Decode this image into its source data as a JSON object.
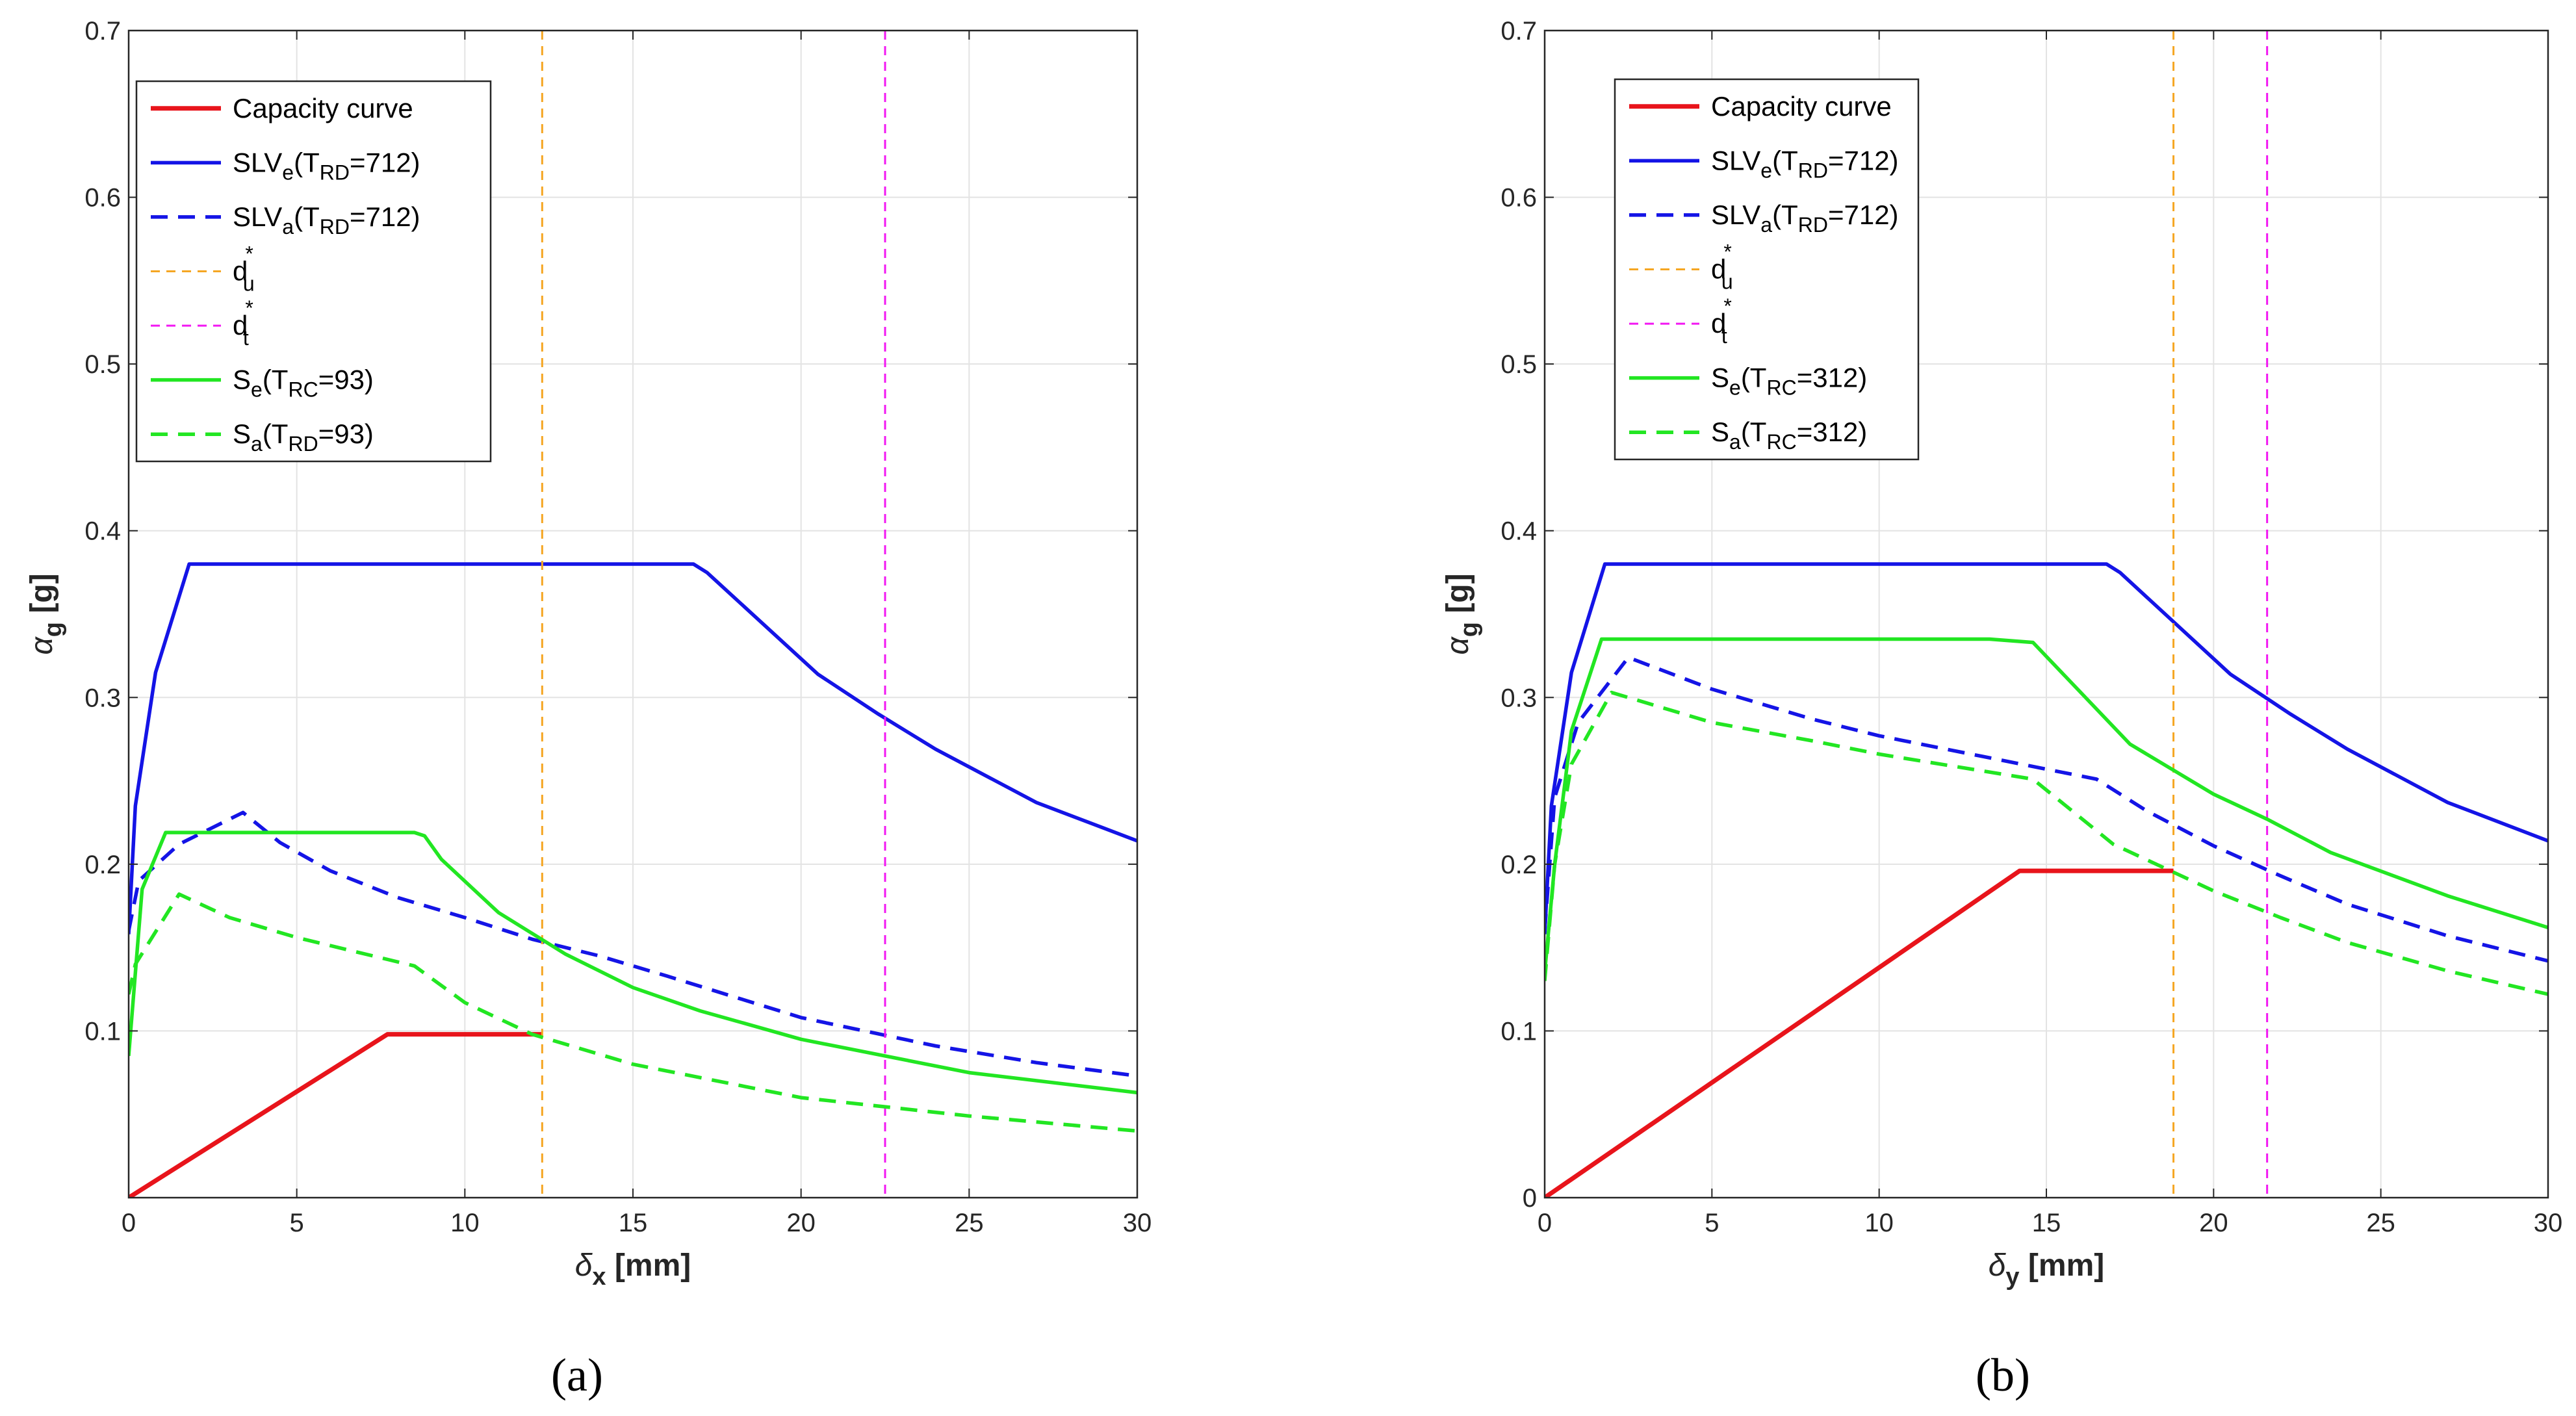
{
  "chart_data": [
    {
      "type": "line",
      "caption": "(a)",
      "xlabel": {
        "sym": "δ",
        "sub": "x",
        "unit": " [mm]"
      },
      "ylabel": {
        "sym": "α",
        "sub": "g",
        "unit": " [g]"
      },
      "xlim": [
        0,
        30
      ],
      "ylim": [
        0,
        0.7
      ],
      "grid": true,
      "legend_position": "top-left",
      "x_ticks": [
        {
          "v": 0,
          "label": "0"
        },
        {
          "v": 5,
          "label": "5"
        },
        {
          "v": 10,
          "label": "10"
        },
        {
          "v": 15,
          "label": "15"
        },
        {
          "v": 20,
          "label": "20"
        },
        {
          "v": 25,
          "label": "25"
        },
        {
          "v": 30,
          "label": "30"
        }
      ],
      "y_ticks": [
        {
          "v": 0.1,
          "label": "0.1"
        },
        {
          "v": 0.2,
          "label": "0.2"
        },
        {
          "v": 0.3,
          "label": "0.3"
        },
        {
          "v": 0.4,
          "label": "0.4"
        },
        {
          "v": 0.5,
          "label": "0.5"
        },
        {
          "v": 0.6,
          "label": "0.6"
        },
        {
          "v": 0.7,
          "label": "0.7"
        }
      ],
      "series": [
        {
          "name": "Capacity curve",
          "legend": {
            "main": "Capacity curve"
          },
          "color": "#e8141b",
          "style": "solid",
          "width": "thick",
          "x": [
            0,
            7.7,
            12.3
          ],
          "y": [
            0,
            0.098,
            0.098
          ]
        },
        {
          "name": "SLVe(TRD=712)",
          "legend": {
            "main": "SLV",
            "s1": "e",
            "mid": "(T",
            "s2": "RD",
            "end": "=712)"
          },
          "color": "#1414e6",
          "style": "solid",
          "width": "normal",
          "x": [
            0,
            0.2,
            0.8,
            1.8,
            16.8,
            17.2,
            20.5,
            22.3,
            24,
            27,
            30
          ],
          "y": [
            0.158,
            0.235,
            0.315,
            0.38,
            0.38,
            0.375,
            0.314,
            0.29,
            0.269,
            0.237,
            0.214
          ]
        },
        {
          "name": "SLVa(TRD=712)",
          "legend": {
            "main": "SLV",
            "s1": "a",
            "mid": "(T",
            "s2": "RD",
            "end": "=712)"
          },
          "color": "#1414e6",
          "style": "dashed",
          "width": "normal",
          "x": [
            0,
            0.3,
            1.5,
            3.4,
            4.5,
            6,
            8,
            10,
            12,
            14,
            16,
            20,
            24,
            27,
            30
          ],
          "y": [
            0.16,
            0.19,
            0.212,
            0.231,
            0.213,
            0.196,
            0.18,
            0.168,
            0.155,
            0.145,
            0.133,
            0.108,
            0.091,
            0.081,
            0.073
          ]
        },
        {
          "name": "du*",
          "legend": {
            "main": "d",
            "s1": "u",
            "sup": "*"
          },
          "color": "#f5a623",
          "style": "dashed",
          "width": "thin",
          "vline": 12.3
        },
        {
          "name": "dt*",
          "legend": {
            "main": "d",
            "s1": "t",
            "sup": "*"
          },
          "color": "#f218f2",
          "style": "dashed",
          "width": "thin",
          "vline": 22.5
        },
        {
          "name": "Se(TRC=93)",
          "legend": {
            "main": "S",
            "s1": "e",
            "mid": "(T",
            "s2": "RC",
            "end": "=93)"
          },
          "color": "#22e622",
          "style": "solid",
          "width": "normal",
          "x": [
            0,
            0.4,
            1.1,
            8.5,
            8.8,
            9.3,
            11,
            13,
            15,
            17,
            20,
            25,
            30
          ],
          "y": [
            0.085,
            0.185,
            0.219,
            0.219,
            0.217,
            0.203,
            0.171,
            0.146,
            0.126,
            0.112,
            0.095,
            0.075,
            0.063
          ]
        },
        {
          "name": "Sa(TRD=93)",
          "legend": {
            "main": "S",
            "s1": "a",
            "mid": "(T",
            "s2": "RD",
            "end": "=93)"
          },
          "color": "#22e622",
          "style": "dashed",
          "width": "normal",
          "x": [
            0,
            0.2,
            1.5,
            3,
            5,
            8.5,
            10,
            12,
            15,
            20,
            25,
            30
          ],
          "y": [
            0.122,
            0.14,
            0.182,
            0.168,
            0.156,
            0.139,
            0.117,
            0.098,
            0.08,
            0.06,
            0.049,
            0.04
          ]
        }
      ]
    },
    {
      "type": "line",
      "caption": "(b)",
      "xlabel": {
        "sym": "δ",
        "sub": "y",
        "unit": " [mm]"
      },
      "ylabel": {
        "sym": "α",
        "sub": "g",
        "unit": " [g]"
      },
      "xlim": [
        0,
        30
      ],
      "ylim": [
        0,
        0.7
      ],
      "grid": true,
      "legend_position": "top-left",
      "x_ticks": [
        {
          "v": 0,
          "label": "0"
        },
        {
          "v": 5,
          "label": "5"
        },
        {
          "v": 10,
          "label": "10"
        },
        {
          "v": 15,
          "label": "15"
        },
        {
          "v": 20,
          "label": "20"
        },
        {
          "v": 25,
          "label": "25"
        },
        {
          "v": 30,
          "label": "30"
        }
      ],
      "y_ticks": [
        {
          "v": 0,
          "label": "0"
        },
        {
          "v": 0.1,
          "label": "0.1"
        },
        {
          "v": 0.2,
          "label": "0.2"
        },
        {
          "v": 0.3,
          "label": "0.3"
        },
        {
          "v": 0.4,
          "label": "0.4"
        },
        {
          "v": 0.5,
          "label": "0.5"
        },
        {
          "v": 0.6,
          "label": "0.6"
        },
        {
          "v": 0.7,
          "label": "0.7"
        }
      ],
      "series": [
        {
          "name": "Capacity curve",
          "legend": {
            "main": "Capacity curve"
          },
          "color": "#e8141b",
          "style": "solid",
          "width": "thick",
          "x": [
            0,
            14.2,
            18.8
          ],
          "y": [
            0,
            0.196,
            0.196
          ]
        },
        {
          "name": "SLVe(TRD=712)",
          "legend": {
            "main": "SLV",
            "s1": "e",
            "mid": "(T",
            "s2": "RD",
            "end": "=712)"
          },
          "color": "#1414e6",
          "style": "solid",
          "width": "normal",
          "x": [
            0,
            0.2,
            0.8,
            1.8,
            16.8,
            17.2,
            20.5,
            22.3,
            24,
            27,
            30
          ],
          "y": [
            0.158,
            0.235,
            0.315,
            0.38,
            0.38,
            0.375,
            0.314,
            0.29,
            0.269,
            0.237,
            0.214
          ]
        },
        {
          "name": "SLVa(TRD=712)",
          "legend": {
            "main": "SLV",
            "s1": "a",
            "mid": "(T",
            "s2": "RD",
            "end": "=712)"
          },
          "color": "#1414e6",
          "style": "dashed",
          "width": "normal",
          "x": [
            0,
            0.3,
            1,
            2.5,
            5,
            8,
            10,
            13,
            16.5,
            18,
            20,
            22,
            24,
            27,
            30
          ],
          "y": [
            0.16,
            0.24,
            0.285,
            0.324,
            0.305,
            0.287,
            0.277,
            0.265,
            0.251,
            0.232,
            0.211,
            0.193,
            0.176,
            0.157,
            0.142
          ]
        },
        {
          "name": "du*",
          "legend": {
            "main": "d",
            "s1": "u",
            "sup": "*"
          },
          "color": "#f5a623",
          "style": "dashed",
          "width": "thin",
          "vline": 18.8
        },
        {
          "name": "dt*",
          "legend": {
            "main": "d",
            "s1": "t",
            "sup": "*"
          },
          "color": "#f218f2",
          "style": "dashed",
          "width": "thin",
          "vline": 21.6
        },
        {
          "name": "Se(TRC=312)",
          "legend": {
            "main": "S",
            "s1": "e",
            "mid": "(T",
            "s2": "RC",
            "end": "=312)"
          },
          "color": "#22e622",
          "style": "solid",
          "width": "normal",
          "x": [
            0,
            0.3,
            0.8,
            1.7,
            13.3,
            14.6,
            17.5,
            20,
            21.6,
            23.5,
            27,
            30
          ],
          "y": [
            0.135,
            0.2,
            0.28,
            0.335,
            0.335,
            0.333,
            0.272,
            0.242,
            0.227,
            0.207,
            0.181,
            0.162
          ]
        },
        {
          "name": "Sa(TRC=312)",
          "legend": {
            "main": "S",
            "s1": "a",
            "mid": "(T",
            "s2": "RC",
            "end": "=312)"
          },
          "color": "#22e622",
          "style": "dashed",
          "width": "normal",
          "x": [
            0,
            0.3,
            0.8,
            2,
            5,
            8,
            10,
            14.6,
            17,
            20,
            22,
            24,
            27,
            30
          ],
          "y": [
            0.13,
            0.2,
            0.26,
            0.303,
            0.285,
            0.274,
            0.266,
            0.251,
            0.212,
            0.184,
            0.168,
            0.153,
            0.136,
            0.122
          ]
        }
      ]
    }
  ]
}
